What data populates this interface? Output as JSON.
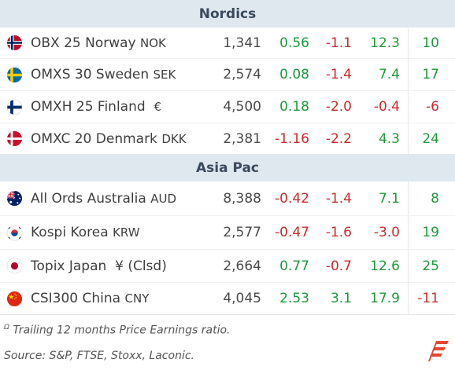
{
  "sections": [
    {
      "title": "Nordics",
      "rows": [
        {
          "name": "OBX 25 Norway",
          "ccy": "NOK",
          "price": "1,341",
          "c2": "0.56",
          "c3": "-1.1",
          "c4": "12.3",
          "c5": "10"
        },
        {
          "name": "OMXS 30 Sweden",
          "ccy": "SEK",
          "price": "2,574",
          "c2": "0.08",
          "c3": "-1.4",
          "c4": "7.4",
          "c5": "17"
        },
        {
          "name": "OMXH 25 Finland",
          "ccy": "€",
          "price": "4,500",
          "c2": "0.18",
          "c3": "-2.0",
          "c4": "-0.4",
          "c5": "-6"
        },
        {
          "name": "OMXC 20 Denmark",
          "ccy": "DKK",
          "price": "2,381",
          "c2": "-1.16",
          "c3": "-2.2",
          "c4": "4.3",
          "c5": "24"
        }
      ]
    },
    {
      "title": "Asia Pac",
      "rows": [
        {
          "name": "All Ords Australia",
          "ccy": "AUD",
          "price": "8,388",
          "c2": "-0.42",
          "c3": "-1.4",
          "c4": "7.1",
          "c5": "8"
        },
        {
          "name": "Kospi Korea",
          "ccy": "KRW",
          "price": "2,577",
          "c2": "-0.47",
          "c3": "-1.6",
          "c4": "-3.0",
          "c5": "19"
        },
        {
          "name": "Topix Japan",
          "ccy": "¥ (Clsd)",
          "price": "2,664",
          "c2": "0.77",
          "c3": "-0.7",
          "c4": "12.6",
          "c5": "25"
        },
        {
          "name": "CSI300 China",
          "ccy": "CNY",
          "price": "4,045",
          "c2": "2.53",
          "c3": "3.1",
          "c4": "17.9",
          "c5": "-11"
        }
      ]
    }
  ],
  "footnotes": {
    "pe_note": "Trailing 12 months Price Earnings ratio.",
    "pe_mark": "Ω",
    "source": "Source: S&P, FTSE, Stoxx, Laconic."
  },
  "colors": {
    "positive": "#1b9a3a",
    "negative": "#cc2b2b",
    "header_bg": "#dfe7ef"
  }
}
